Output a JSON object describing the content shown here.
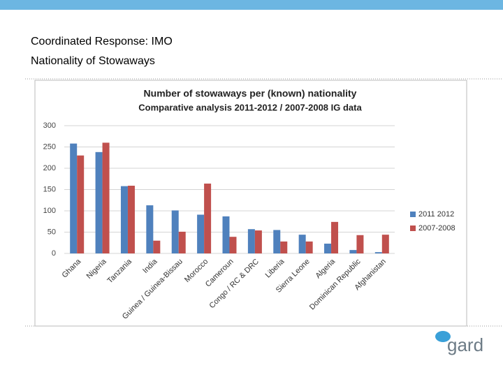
{
  "slide": {
    "title_lines": [
      "Coordinated Response: IMO",
      "Nationality of Stowaways"
    ],
    "logo": "gard"
  },
  "chart_data": {
    "type": "bar",
    "title": "Number of stowaways per (known) nationality",
    "subtitle": "Comparative analysis 2011-2012 / 2007-2008 IG data",
    "categories": [
      "Ghana",
      "Nigeria",
      "Tanzania",
      "India",
      "Guinea / Guinea-Bissau",
      "Morocco",
      "Cameroun",
      "Congo / RC & DRC",
      "Liberia",
      "Sierra Leone",
      "Algeria",
      "Dominican Republic",
      "Afghanistan"
    ],
    "series": [
      {
        "name": "2011 2012",
        "color": "#4f81bd",
        "values": [
          258,
          238,
          158,
          113,
          101,
          91,
          87,
          57,
          55,
          44,
          23,
          8,
          3
        ]
      },
      {
        "name": "2007-2008",
        "color": "#c0504d",
        "values": [
          230,
          260,
          159,
          30,
          51,
          164,
          39,
          54,
          28,
          28,
          74,
          43,
          44
        ]
      }
    ],
    "ylim": [
      0,
      300
    ],
    "yticks": [
      0,
      50,
      100,
      150,
      200,
      250,
      300
    ],
    "grid": true,
    "legend": "right"
  }
}
